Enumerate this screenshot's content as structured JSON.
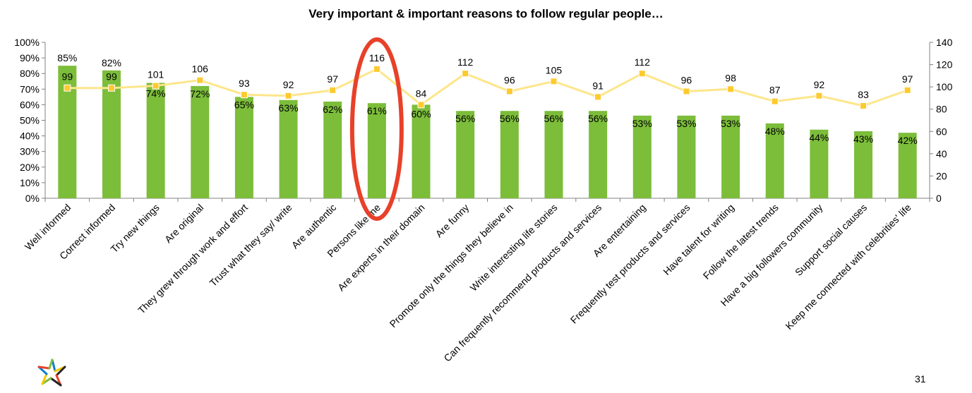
{
  "chart_data": {
    "type": "bar",
    "title": "Very important & important reasons to follow  regular people…",
    "categories": [
      "Well informed",
      "Correct informed",
      "Try new things",
      "Are original",
      "They grew through work and effort",
      "Trust what they say/ write",
      "Are authentic",
      "Persons like me",
      "Are experts in their domain",
      "Are funny",
      "Promote only the things they believe in",
      "Write interesting life stories",
      "Can frequently recommend products and services",
      "Are entertaining",
      "Frequently test products and services",
      "Have talent for writing",
      "Follow the latest trends",
      "Have a big followers community",
      "Support social causes",
      "Keep me connected with celebrities' life"
    ],
    "series": [
      {
        "type": "bar",
        "axis": "left",
        "values": [
          85,
          82,
          74,
          72,
          65,
          63,
          62,
          61,
          60,
          56,
          56,
          56,
          56,
          53,
          53,
          53,
          48,
          44,
          43,
          42
        ],
        "value_suffix": "%",
        "color": "#7cbd3a"
      },
      {
        "type": "line",
        "axis": "right",
        "values": [
          99,
          99,
          101,
          106,
          93,
          92,
          97,
          116,
          84,
          112,
          96,
          105,
          91,
          112,
          96,
          98,
          87,
          92,
          83,
          97
        ],
        "color": "#fde68a",
        "marker_color": "#fdca2f"
      }
    ],
    "ylim_left": [
      0,
      100
    ],
    "yticks_left": [
      "0%",
      "10%",
      "20%",
      "30%",
      "40%",
      "50%",
      "60%",
      "70%",
      "80%",
      "90%",
      "100%"
    ],
    "ylim_right": [
      0,
      140
    ],
    "yticks_right": [
      "0",
      "20",
      "40",
      "60",
      "80",
      "100",
      "120",
      "140"
    ],
    "grid": false,
    "annotation": {
      "type": "ellipse",
      "target_category": "Persons like me",
      "color": "#e8412a"
    }
  },
  "page_number": "31"
}
